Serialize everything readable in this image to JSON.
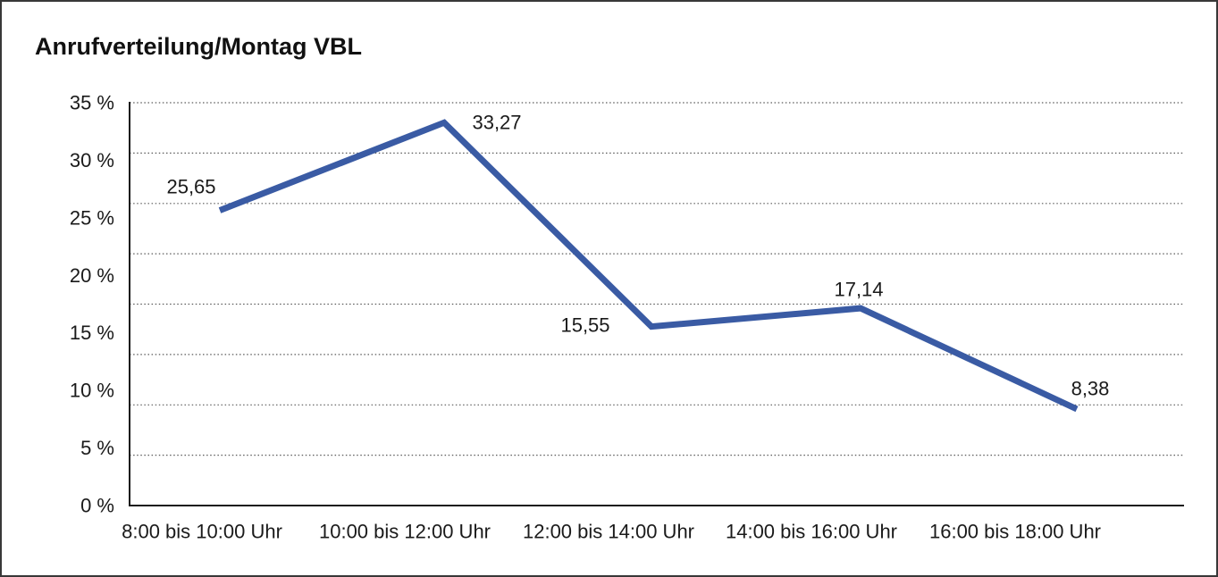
{
  "title": "Anrufverteilung/Montag VBL",
  "chart_data": {
    "type": "line",
    "title": "Anrufverteilung/Montag VBL",
    "categories": [
      "8:00 bis 10:00 Uhr",
      "10:00 bis 12:00 Uhr",
      "12:00 bis 14:00 Uhr",
      "14:00 bis 16:00 Uhr",
      "16:00 bis 18:00 Uhr"
    ],
    "values": [
      25.65,
      33.27,
      15.55,
      17.14,
      8.38
    ],
    "value_labels": [
      "25,65",
      "33,27",
      "15,55",
      "17,14",
      "8,38"
    ],
    "ytick_labels": [
      "35 %",
      "30 %",
      "25 %",
      "20 %",
      "15 %",
      "10 %",
      "5 %",
      "0 %"
    ],
    "yticks": [
      35,
      30,
      25,
      20,
      15,
      10,
      5,
      0
    ],
    "ylim": [
      0,
      35
    ],
    "xlabel": "",
    "ylabel": "",
    "grid": "horizontal-dotted",
    "gridline_intervals": 8,
    "legend": "none",
    "line_color": "#3A5BA4",
    "text_color": "#1A1A1A",
    "frame_color": "#383838",
    "background_color": "#FFFFFF"
  }
}
